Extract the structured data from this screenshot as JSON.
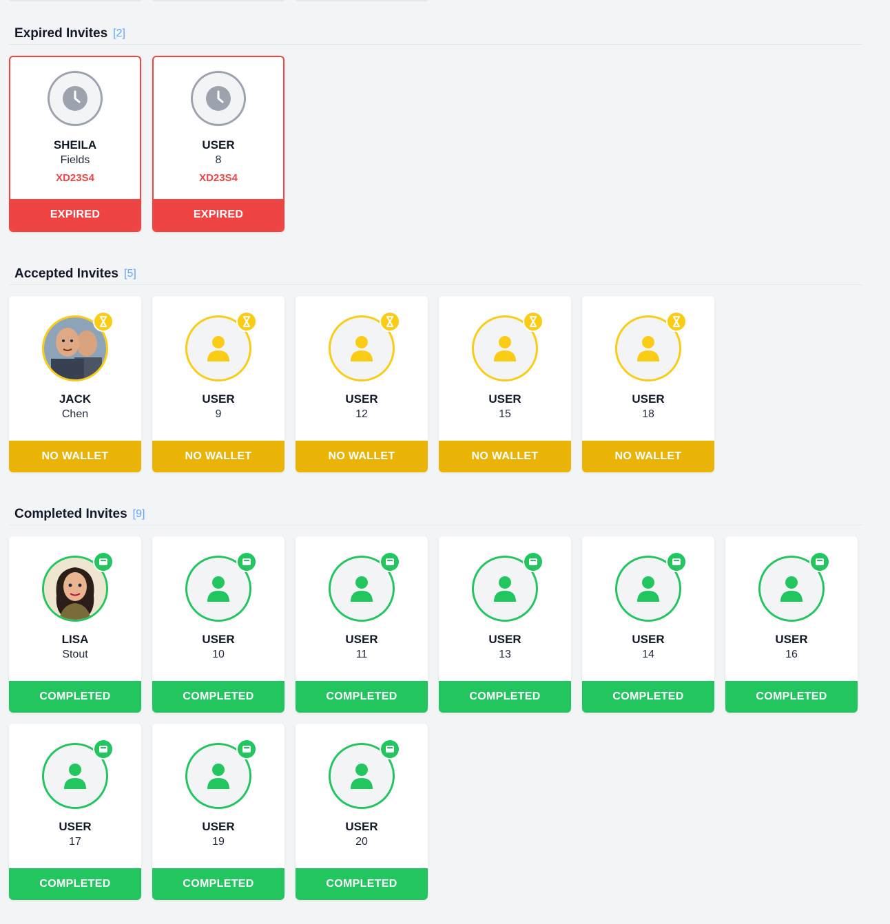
{
  "sections": {
    "expired": {
      "title": "Expired Invites",
      "count": "[2]",
      "cards": [
        {
          "first": "SHEILA",
          "last": "Fields",
          "code": "XD23S4",
          "status": "EXPIRED"
        },
        {
          "first": "USER",
          "last": "8",
          "code": "XD23S4",
          "status": "EXPIRED"
        }
      ]
    },
    "accepted": {
      "title": "Accepted Invites",
      "count": "[5]",
      "cards": [
        {
          "first": "JACK",
          "last": "Chen",
          "status": "NO WALLET"
        },
        {
          "first": "USER",
          "last": "9",
          "status": "NO WALLET"
        },
        {
          "first": "USER",
          "last": "12",
          "status": "NO WALLET"
        },
        {
          "first": "USER",
          "last": "15",
          "status": "NO WALLET"
        },
        {
          "first": "USER",
          "last": "18",
          "status": "NO WALLET"
        }
      ]
    },
    "completed": {
      "title": "Completed Invites",
      "count": "[9]",
      "cards": [
        {
          "first": "LISA",
          "last": "Stout",
          "status": "COMPLETED"
        },
        {
          "first": "USER",
          "last": "10",
          "status": "COMPLETED"
        },
        {
          "first": "USER",
          "last": "11",
          "status": "COMPLETED"
        },
        {
          "first": "USER",
          "last": "13",
          "status": "COMPLETED"
        },
        {
          "first": "USER",
          "last": "14",
          "status": "COMPLETED"
        },
        {
          "first": "USER",
          "last": "16",
          "status": "COMPLETED"
        },
        {
          "first": "USER",
          "last": "17",
          "status": "COMPLETED"
        },
        {
          "first": "USER",
          "last": "19",
          "status": "COMPLETED"
        },
        {
          "first": "USER",
          "last": "20",
          "status": "COMPLETED"
        }
      ]
    }
  },
  "colors": {
    "expired": "#ef4444",
    "accepted": "#eab308",
    "accepted_ring": "#facc15",
    "completed": "#22c55e",
    "count": "#60a5fa"
  },
  "icons": {
    "expired": "clock-icon",
    "accepted_badge": "hourglass-icon",
    "completed_badge": "wallet-icon",
    "placeholder": "user-icon"
  }
}
